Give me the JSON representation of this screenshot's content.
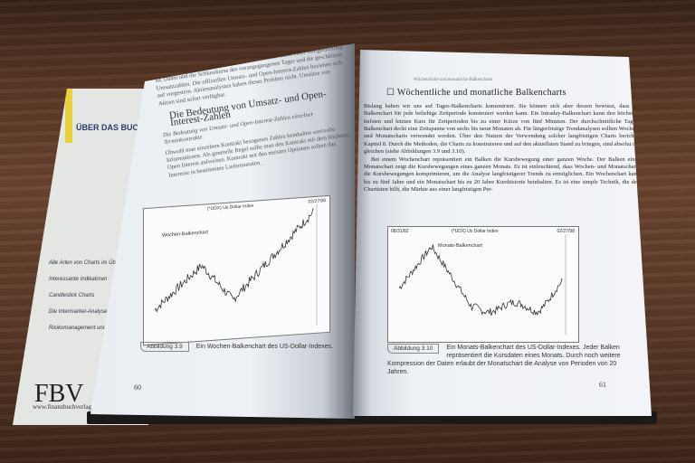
{
  "back_cover": {
    "title": "ÜBER DAS BUCH",
    "bullets": [
      "Alle Arten von Charts im Über...",
      "Interessante Indikatoren",
      "Candlestick Charts",
      "Die Intermarket-Analyse",
      "Risikomanagement und Psy..."
    ],
    "publisher_logo": "FBV",
    "url": "www.finanzbuchverlag.de"
  },
  "left_page": {
    "intro": "sehr niedrigem ab, obwohl die Anzeigen fast Wie der Leser einer Morgenzeitung ist, Daten und die Schlusskurse des vorangegangenen Tages und die geschätzten Umsatzzahlen. Die offiziellen Umsatz- und Open-Interest-Zahlen beziehen sich auf vorgestern. Aktienanalysten haben dieses Problem nicht. Umsätze von Aktien sind sofort verfügbar.",
    "heading": "Die Bedeutung von Umsatz- und Open-Interest-Zahlen",
    "subheading": "Die Bedeutung von Umsatz- und Open-Interest-Zahlen einzelner Terminkontrakte",
    "body": "Obwohl man einzelnen Kontrakt bezogenen Zahlen beinhalten wertvolle Informationen. Als generelle Regel sollte man den Kontrakt mit dem höchsten Open Interest aufweisen. Kontrakt mit den meisten Optionen sollten das Interesse in bestimmten Liefermonaten.",
    "chart": {
      "header_left": "",
      "header_center": "(*UDX) Us Dollar Index",
      "header_right": "02/27/98",
      "label": "Wochen-Balkenchart"
    },
    "figure_label": "Abbildung 3.9",
    "caption": "Ein Wochen-Balkenchart des US-Dollar-Indexes.",
    "page_number": "60"
  },
  "right_page": {
    "running_head": "Wöchentliche und monatliche Balkencharts",
    "heading": "Wöchentliche und monatliche Balkencharts",
    "para1": "Bislang haben wir uns auf Tages-Balkencharts konzentriert. Sie können sich aber dessen bewusst, dass ein Balkenchart für jede beliebige Zeitperiode konstruiert werden kann. Ein Intraday-Balkenchart kann den höchsten, tiefsten und letzten Kurs für Zeitperioden bis zu einer Kürze von fünf Minuten. Der durchschnittliche Tages-Balkenchart deckt eine Zeitspanne von sechs bis neun Monaten ab. Für längerfristige Trendanalysen sollten Wochen- und Monatscharts verwendet werden. Über den Nutzen der Verwendung solcher langfristigen Charts berichtet Kapitel 8. Durch die Methoden, die Charts zu konstruieren und auf den aktuellsten Stand zu bringen, sind absolut die gleichen (siehe Abbildungen 3.9 und 3.10).",
    "para2": "Bei einem Wochenchart repräsentiert ein Balken die Kursbewegung einer ganzen Woche. Der Balken eines Monatschart zeigt die Kursbewegungen eines ganzen Monats. Es ist einleuchtend, dass Wochen- und Monatscharts die Kursbewegungen komprimieren, um die Analyse langfristigerer Trends zu ermöglichen. Ein Wochenchart kann bis zu fünf Jahre und ein Monatschart bis zu 20 Jahre Kurshistorie beinhalten. Es ist eine simple Technik, die den Chartisten hilft, die Märkte aus einer langfristigen Per-",
    "chart": {
      "header_left": "08/31/82",
      "header_center": "(*UDX) Us Dollar Index",
      "header_right": "02/27/98",
      "label": "Monats-Balkenchart"
    },
    "figure_label": "Abbildung 3.10",
    "caption": "Ein Monats-Balkenchart des US-Dollar-Indexes. Jeder Balken repräsentiert die Kursdaten eines Monats. Durch noch weitere Kompression der Daten erlaubt der Monatschart die Analyse von Perioden von 20 Jahren.",
    "page_number": "61"
  }
}
